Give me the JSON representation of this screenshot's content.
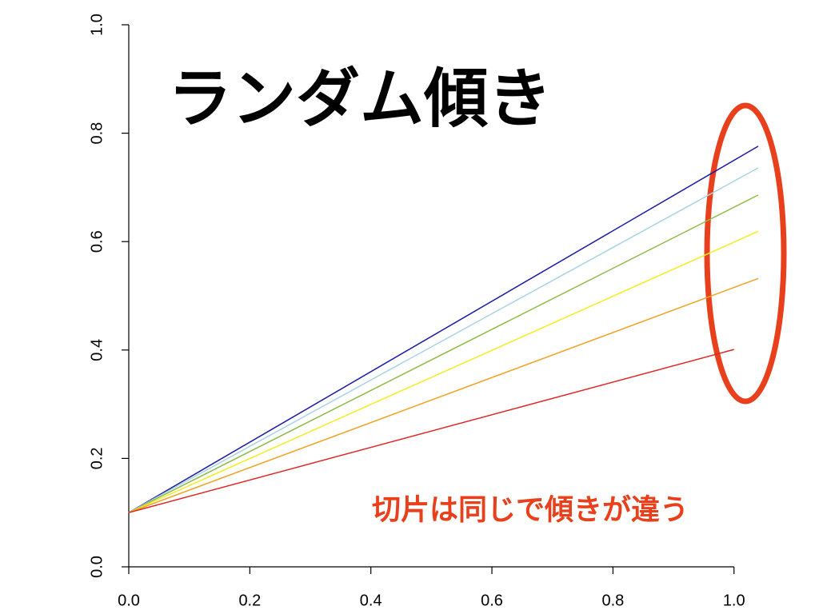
{
  "chart_data": {
    "type": "line",
    "title": "ランダム傾き",
    "annotation": "切片は同じで傾きが違う",
    "xlim": [
      0,
      1.04
    ],
    "ylim": [
      0,
      1
    ],
    "xticks": [
      {
        "value": 0,
        "label": "0.0"
      },
      0.2,
      0.4,
      0.6,
      0.8,
      {
        "value": 1,
        "label": "1.0"
      }
    ],
    "yticks": [
      {
        "value": 0,
        "label": "0.0"
      },
      0.2,
      0.4,
      0.6,
      0.8,
      {
        "value": 1,
        "label": "1.0"
      }
    ],
    "series": [
      {
        "color": "#1a1aa6",
        "x": [
          0,
          1.04
        ],
        "values": [
          0.1,
          0.776
        ]
      },
      {
        "color": "#a9d2e3",
        "x": [
          0,
          1.04
        ],
        "values": [
          0.1,
          0.736
        ]
      },
      {
        "color": "#8fbb4a",
        "x": [
          0,
          1.04
        ],
        "values": [
          0.1,
          0.686
        ]
      },
      {
        "color": "#f2ee22",
        "x": [
          0,
          1.04
        ],
        "values": [
          0.1,
          0.619
        ]
      },
      {
        "color": "#f0a222",
        "x": [
          0,
          1.04
        ],
        "values": [
          0.1,
          0.532
        ]
      },
      {
        "color": "#e02424",
        "x": [
          0,
          1
        ],
        "values": [
          0.1,
          0.401
        ]
      }
    ]
  }
}
